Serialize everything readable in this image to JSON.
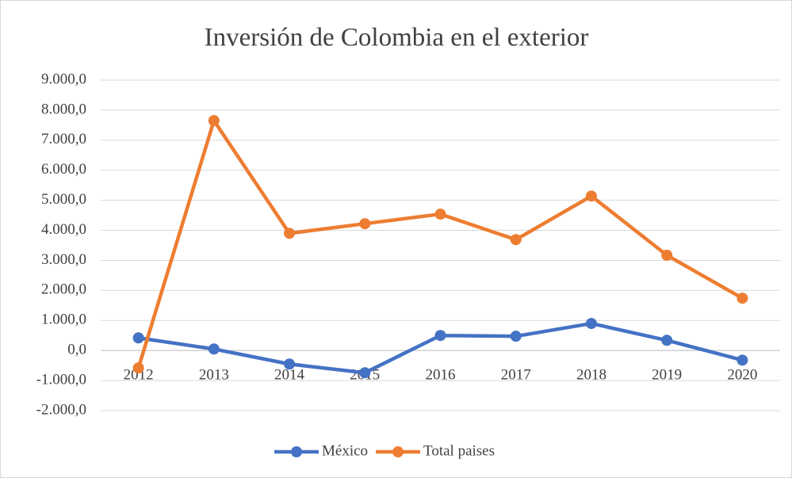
{
  "chart_data": {
    "type": "line",
    "title": "Inversión de Colombia en el exterior",
    "categories": [
      "2012",
      "2013",
      "2014",
      "2015",
      "2016",
      "2017",
      "2018",
      "2019",
      "2020"
    ],
    "series": [
      {
        "name": "México",
        "color": "#4472c4",
        "values": [
          420,
          50,
          -450,
          -740,
          500,
          475,
          900,
          340,
          -320
        ]
      },
      {
        "name": "Total paises",
        "color": "#ed7d31",
        "values": [
          -580,
          7650,
          3900,
          4220,
          4540,
          3690,
          5140,
          3170,
          1740
        ]
      }
    ],
    "ylim": [
      -2000,
      9000
    ],
    "yticks": [
      {
        "value": -2000,
        "label": "-2.000,0"
      },
      {
        "value": -1000,
        "label": "-1.000,0"
      },
      {
        "value": 0,
        "label": "0,0"
      },
      {
        "value": 1000,
        "label": "1.000,0"
      },
      {
        "value": 2000,
        "label": "2.000,0"
      },
      {
        "value": 3000,
        "label": "3.000,0"
      },
      {
        "value": 4000,
        "label": "4.000,0"
      },
      {
        "value": 5000,
        "label": "5.000,0"
      },
      {
        "value": 6000,
        "label": "6.000,0"
      },
      {
        "value": 7000,
        "label": "7.000,0"
      },
      {
        "value": 8000,
        "label": "8.000,0"
      },
      {
        "value": 9000,
        "label": "9.000,0"
      }
    ],
    "grid": true,
    "legend": "bottom"
  }
}
